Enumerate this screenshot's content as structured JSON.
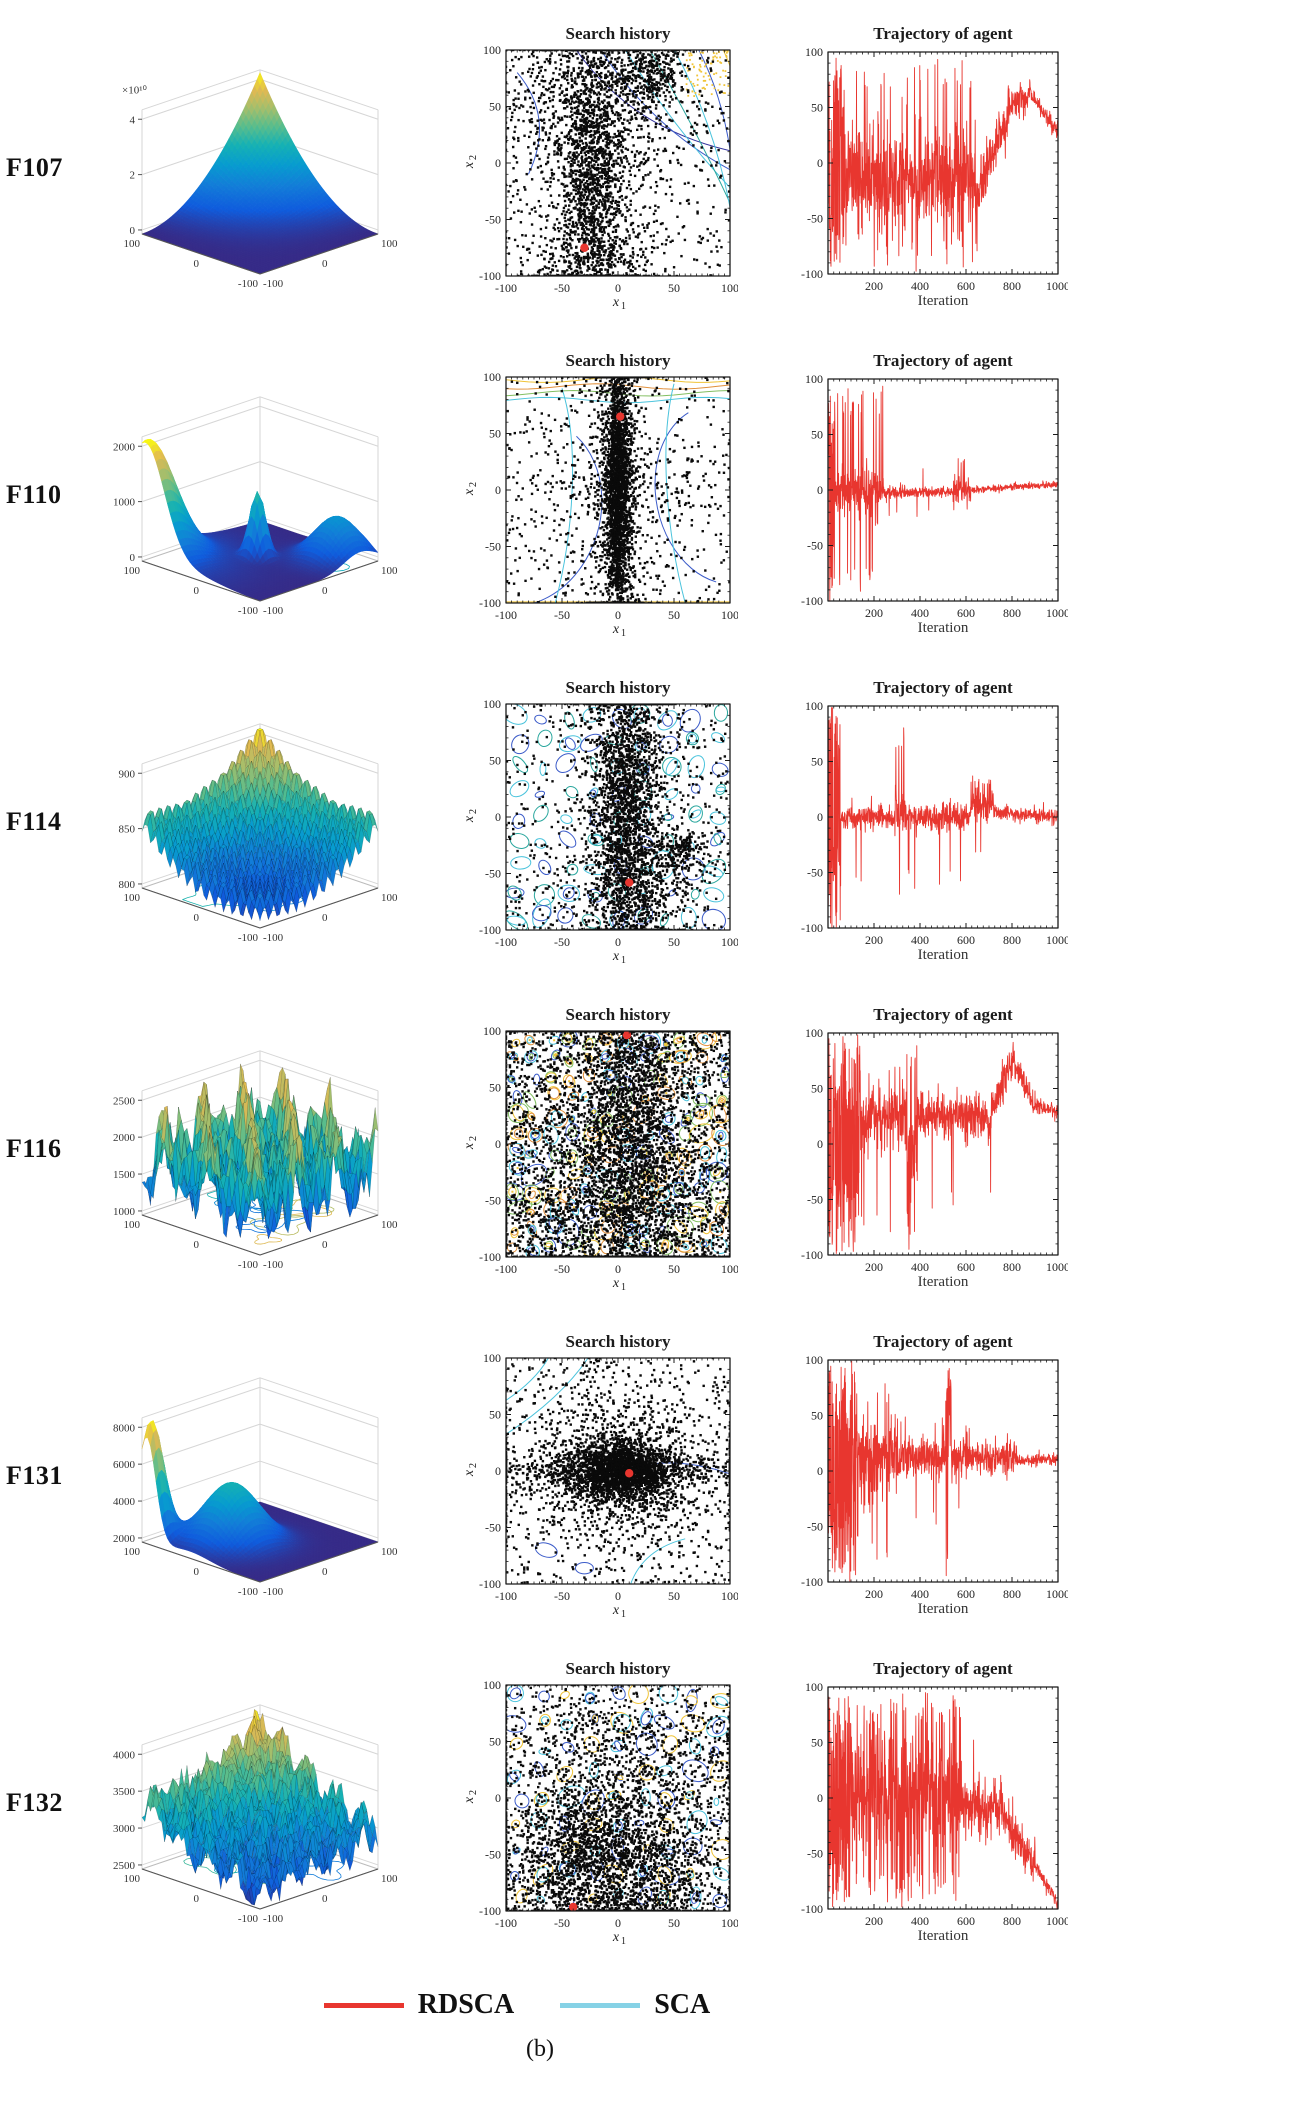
{
  "caption": "(b)",
  "legend": [
    {
      "label": "RDSCA",
      "color": "#e8362f"
    },
    {
      "label": "SCA",
      "color": "#86d2e6"
    }
  ],
  "titles": {
    "search": "Search history",
    "trajectory": "Trajectory of agent",
    "iteration": "Iteration",
    "x1": {
      "base": "x",
      "sub": "1"
    },
    "x2": {
      "base": "x",
      "sub": "2"
    }
  },
  "axes": {
    "search": {
      "xlim": [
        -100,
        100
      ],
      "ylim": [
        -100,
        100
      ],
      "xticks": [
        -100,
        -50,
        0,
        50,
        100
      ],
      "yticks": [
        -100,
        -50,
        0,
        50,
        100
      ]
    },
    "trajectory": {
      "xlim": [
        0,
        1000
      ],
      "ylim": [
        -100,
        100
      ],
      "xticks": [
        200,
        400,
        600,
        800,
        1000
      ],
      "yticks": [
        -100,
        -50,
        0,
        50,
        100
      ]
    }
  },
  "contour_palette": {
    "cyan": "#49c3dc",
    "blue": "#3b5bc9",
    "darkblue": "#30309b",
    "teal": "#2aa79e",
    "yellow": "#f0c437",
    "orange": "#e1903c",
    "green": "#83bf62"
  },
  "chart_data": {
    "type": "multi-panel benchmark optimization figure",
    "columns": [
      "3D surface of function",
      "Search history scatter with contours",
      "Trajectory of agent (RDSCA, red)"
    ],
    "rows": [
      {
        "id": "F107",
        "surface": {
          "shape": "corner_power",
          "mesh": false,
          "floor": 2,
          "seed": 107,
          "zticks": [
            "0",
            "2",
            "4"
          ],
          "zexp": "×10¹⁰",
          "edge_left": [
            "100",
            "0",
            "-100"
          ],
          "edge_right": [
            "-100",
            "0",
            "100"
          ]
        },
        "search": {
          "seed": 1071,
          "contour": "diagonal",
          "red_point": [
            -30,
            -75
          ],
          "uniform": 550,
          "clusters": [
            {
              "cx": -22,
              "cy": -10,
              "sx": 14,
              "sy": 55,
              "n": 1300
            },
            {
              "cx": -22,
              "cy": 50,
              "sx": 40,
              "sy": 38,
              "n": 600
            },
            {
              "cx": -22,
              "cy": 0,
              "sx": 30,
              "sy": 150,
              "n": 450
            },
            {
              "cx": 30,
              "cy": 78,
              "sx": 13,
              "sy": 14,
              "n": 260
            },
            {
              "cx": -28,
              "cy": -85,
              "sx": 30,
              "sy": 14,
              "n": 220
            }
          ]
        },
        "trajectory": {
          "seed": 1072,
          "phases": [
            {
              "until": 70,
              "type": "wild"
            },
            {
              "until": 640,
              "type": "noisy",
              "center": -15,
              "amp": 25,
              "spike_p": 0.07,
              "spike_amp": 95
            },
            {
              "until": 790,
              "type": "trend",
              "from": -35,
              "to": 50,
              "amp": 12,
              "spike_p": 0.02,
              "spike_amp": 70
            },
            {
              "until": 880,
              "type": "trend",
              "from": 50,
              "to": 62,
              "amp": 7
            },
            {
              "until": 1000,
              "type": "trend",
              "from": 62,
              "to": 28,
              "amp": 4
            }
          ]
        }
      },
      {
        "id": "F110",
        "surface": {
          "shape": "wall_spike",
          "mesh": false,
          "floor": 6,
          "seed": 110,
          "zticks": [
            "0",
            "1000",
            "2000"
          ],
          "zexp": "",
          "edge_left": [
            "100",
            "0",
            "-100"
          ],
          "edge_right": [
            "-100",
            "0",
            "100"
          ]
        },
        "search": {
          "seed": 1101,
          "contour": "bands",
          "red_point": [
            2,
            65
          ],
          "uniform": 520,
          "clusters": [
            {
              "cx": 0,
              "cy": 0,
              "sx": 6,
              "sy": 60,
              "n": 2200
            },
            {
              "cx": 0,
              "cy": 0,
              "sx": 14,
              "sy": 150,
              "n": 800
            },
            {
              "cx": 0,
              "cy": 0,
              "sx": 45,
              "sy": 20,
              "n": 150
            }
          ]
        },
        "trajectory": {
          "seed": 1102,
          "phases": [
            {
              "until": 30,
              "type": "wild"
            },
            {
              "until": 240,
              "type": "noisy",
              "center": 0,
              "amp": 10,
              "spike_p": 0.14,
              "spike_amp": 95
            },
            {
              "until": 540,
              "type": "noisy",
              "center": -2,
              "amp": 2.5,
              "spike_p": 0.01,
              "spike_amp": 25
            },
            {
              "until": 620,
              "type": "noisy",
              "center": 0,
              "amp": 6,
              "spike_p": 0.06,
              "spike_amp": 30
            },
            {
              "until": 1000,
              "type": "trend",
              "from": 0,
              "to": 5,
              "amp": 1.5
            }
          ]
        }
      },
      {
        "id": "F114",
        "surface": {
          "shape": "eggcrate_rim",
          "mesh": true,
          "floor": 8,
          "seed": 114,
          "zticks": [
            "800",
            "850",
            "900"
          ],
          "zexp": "",
          "edge_left": [
            "100",
            "0",
            "-100"
          ],
          "edge_right": [
            "-100",
            "0",
            "100"
          ]
        },
        "search": {
          "seed": 1141,
          "contour": "cells",
          "red_point": [
            10,
            -58
          ],
          "uniform": 650,
          "clusters": [
            {
              "cx": 8,
              "cy": 5,
              "sx": 15,
              "sy": 60,
              "n": 1900
            },
            {
              "cx": 8,
              "cy": 0,
              "sx": 25,
              "sy": 150,
              "n": 600
            },
            {
              "cx": 55,
              "cy": -30,
              "sx": 12,
              "sy": 10,
              "n": 200
            },
            {
              "cx": 10,
              "cy": -70,
              "sx": 25,
              "sy": 20,
              "n": 300
            }
          ]
        },
        "trajectory": {
          "seed": 1142,
          "phases": [
            {
              "until": 55,
              "type": "wild"
            },
            {
              "until": 290,
              "type": "noisy",
              "center": 0,
              "amp": 5,
              "spike_p": 0.015,
              "spike_amp": 75
            },
            {
              "until": 330,
              "type": "noisy",
              "center": 5,
              "amp": 12,
              "spike_p": 0.15,
              "spike_amp": 85
            },
            {
              "until": 620,
              "type": "noisy",
              "center": 0,
              "amp": 6,
              "spike_p": 0.02,
              "spike_amp": 65
            },
            {
              "until": 720,
              "type": "noisy",
              "center": 12,
              "amp": 10,
              "spike_p": 0.03,
              "spike_amp": 40
            },
            {
              "until": 1000,
              "type": "trend",
              "from": 5,
              "to": 0,
              "amp": 3
            }
          ]
        }
      },
      {
        "id": "F116",
        "surface": {
          "shape": "noise_field",
          "mesh": true,
          "floor": 10,
          "seed": 116,
          "zticks": [
            "1000",
            "1500",
            "2000",
            "2500"
          ],
          "zexp": "",
          "edge_left": [
            "100",
            "0",
            "-100"
          ],
          "edge_right": [
            "-100",
            "0",
            "100"
          ]
        },
        "search": {
          "seed": 1161,
          "contour": "dense",
          "red_point": [
            8,
            100
          ],
          "uniform": 1800,
          "clusters": [
            {
              "cx": 10,
              "cy": 20,
              "sx": 22,
              "sy": 65,
              "n": 1800
            },
            {
              "cx": 0,
              "cy": 0,
              "sx": 60,
              "sy": 160,
              "n": 1500
            },
            {
              "cx": 0,
              "cy": -60,
              "sx": 55,
              "sy": 30,
              "n": 700
            },
            {
              "cx": 0,
              "cy": 0,
              "sx": 160,
              "sy": 160,
              "n": 800
            }
          ]
        },
        "trajectory": {
          "seed": 1162,
          "phases": [
            {
              "until": 140,
              "type": "wild"
            },
            {
              "until": 340,
              "type": "noisy",
              "center": 25,
              "amp": 14,
              "spike_p": 0.04,
              "spike_amp": 80
            },
            {
              "until": 390,
              "type": "noisy",
              "center": -15,
              "amp": 30,
              "spike_p": 0.18,
              "spike_amp": 95
            },
            {
              "until": 710,
              "type": "noisy",
              "center": 25,
              "amp": 10,
              "spike_p": 0.012,
              "spike_amp": 60
            },
            {
              "until": 800,
              "type": "trend",
              "from": 30,
              "to": 75,
              "amp": 8
            },
            {
              "until": 900,
              "type": "trend",
              "from": 75,
              "to": 35,
              "amp": 6
            },
            {
              "until": 1000,
              "type": "trend",
              "from": 35,
              "to": 30,
              "amp": 3
            }
          ]
        }
      },
      {
        "id": "F131",
        "surface": {
          "shape": "corner_peak_flat",
          "mesh": false,
          "floor": 5,
          "seed": 131,
          "zticks": [
            "2000",
            "4000",
            "6000",
            "8000"
          ],
          "zexp": "",
          "edge_left": [
            "100",
            "0",
            "-100"
          ],
          "edge_right": [
            "-100",
            "0",
            "100"
          ]
        },
        "search": {
          "seed": 1311,
          "contour": "arcs",
          "red_point": [
            10,
            -2
          ],
          "uniform": 620,
          "clusters": [
            {
              "cx": 2,
              "cy": 0,
              "sx": 22,
              "sy": 14,
              "n": 1800
            },
            {
              "cx": 2,
              "cy": 0,
              "sx": 55,
              "sy": 8,
              "n": 600
            },
            {
              "cx": 2,
              "cy": 2,
              "sx": 40,
              "sy": 40,
              "n": 800
            },
            {
              "cx": 0,
              "cy": 0,
              "sx": 150,
              "sy": 30,
              "n": 300
            }
          ]
        },
        "trajectory": {
          "seed": 1312,
          "phases": [
            {
              "until": 125,
              "type": "wild"
            },
            {
              "until": 300,
              "type": "noisy",
              "center": 15,
              "amp": 20,
              "spike_p": 0.05,
              "spike_amp": 80
            },
            {
              "until": 510,
              "type": "noisy",
              "center": 12,
              "amp": 9,
              "spike_p": 0.02,
              "spike_amp": 50
            },
            {
              "until": 535,
              "type": "noisy",
              "center": 50,
              "amp": 35,
              "spike_p": 0.4,
              "spike_amp": 95
            },
            {
              "until": 820,
              "type": "noisy",
              "center": 12,
              "amp": 8,
              "spike_p": 0.012,
              "spike_amp": 45
            },
            {
              "until": 1000,
              "type": "trend",
              "from": 10,
              "to": 10,
              "amp": 2.5
            }
          ]
        }
      },
      {
        "id": "F132",
        "surface": {
          "shape": "noisy_bowl",
          "mesh": true,
          "floor": 8,
          "seed": 132,
          "zticks": [
            "2500",
            "3000",
            "3500",
            "4000"
          ],
          "zexp": "",
          "edge_left": [
            "100",
            "0",
            "-100"
          ],
          "edge_right": [
            "-100",
            "0",
            "100"
          ]
        },
        "search": {
          "seed": 1321,
          "contour": "cells2",
          "red_point": [
            -40,
            -98
          ],
          "uniform": 700,
          "clusters": [
            {
              "cx": -15,
              "cy": -55,
              "sx": 40,
              "sy": 28,
              "n": 1400
            },
            {
              "cx": 5,
              "cy": -25,
              "sx": 60,
              "sy": 45,
              "n": 1000
            },
            {
              "cx": 0,
              "cy": -95,
              "sx": 50,
              "sy": 12,
              "n": 350
            },
            {
              "cx": 0,
              "cy": 45,
              "sx": 65,
              "sy": 30,
              "n": 450
            },
            {
              "cx": 0,
              "cy": -40,
              "sx": 160,
              "sy": 80,
              "n": 500
            }
          ]
        },
        "trajectory": {
          "seed": 1322,
          "phases": [
            {
              "until": 90,
              "type": "wild"
            },
            {
              "until": 580,
              "type": "noisy",
              "center": 5,
              "amp": 28,
              "spike_p": 0.2,
              "spike_amp": 95
            },
            {
              "until": 760,
              "type": "noisy",
              "center": -8,
              "amp": 14,
              "spike_p": 0.03,
              "spike_amp": 60
            },
            {
              "until": 900,
              "type": "trend",
              "from": -15,
              "to": -60,
              "amp": 9
            },
            {
              "until": 1000,
              "type": "trend",
              "from": -60,
              "to": -96,
              "amp": 3
            }
          ]
        }
      }
    ]
  }
}
